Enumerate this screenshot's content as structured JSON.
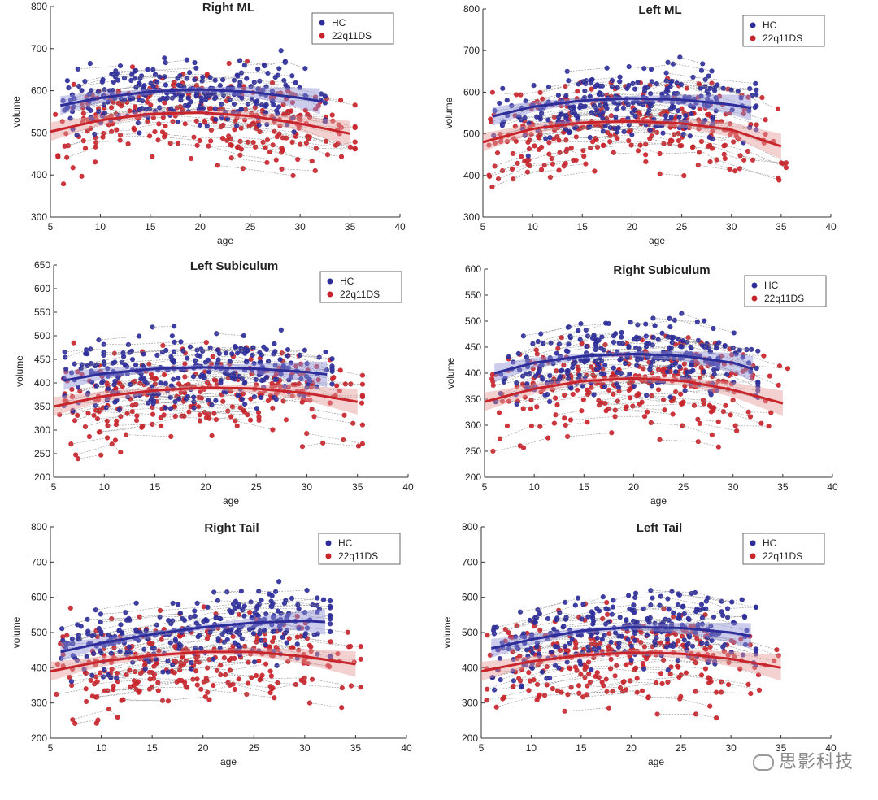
{
  "colors": {
    "hc": "#2e2e9a",
    "ds": "#c8242b",
    "hc_band": "#8f8fd6",
    "ds_band": "#e69a9a",
    "link": "#888888"
  },
  "watermark": "思影科技",
  "chart_data": [
    {
      "type": "scatter",
      "title": "Right ML",
      "xlabel": "age",
      "ylabel": "volume",
      "xlim": [
        5,
        40
      ],
      "ylim": [
        300,
        800
      ],
      "xticks": [
        "5",
        "10",
        "15",
        "20",
        "25",
        "30",
        "35",
        "40"
      ],
      "yticks": [
        "300",
        "400",
        "500",
        "600",
        "700",
        "800"
      ],
      "legend": [
        "HC",
        "22q11DS"
      ],
      "legend_position": "top-right",
      "series": [
        {
          "name": "HC",
          "fit": [
            [
              6,
              565
            ],
            [
              10,
              583
            ],
            [
              15,
              598
            ],
            [
              20,
              603
            ],
            [
              25,
              597
            ],
            [
              30,
              583
            ],
            [
              32,
              575
            ]
          ]
        },
        {
          "name": "22q11DS",
          "fit": [
            [
              5,
              503
            ],
            [
              10,
              530
            ],
            [
              15,
              545
            ],
            [
              20,
              548
            ],
            [
              25,
              540
            ],
            [
              30,
              522
            ],
            [
              35,
              498
            ]
          ]
        }
      ]
    },
    {
      "type": "scatter",
      "title": "Left ML",
      "xlabel": "age",
      "ylabel": "volume",
      "xlim": [
        5,
        40
      ],
      "ylim": [
        300,
        800
      ],
      "xticks": [
        "5",
        "10",
        "15",
        "20",
        "25",
        "30",
        "35",
        "40"
      ],
      "yticks": [
        "300",
        "400",
        "500",
        "600",
        "700",
        "800"
      ],
      "legend": [
        "HC",
        "22q11DS"
      ],
      "legend_position": "top-right",
      "series": [
        {
          "name": "HC",
          "fit": [
            [
              6,
              542
            ],
            [
              10,
              565
            ],
            [
              15,
              580
            ],
            [
              20,
              585
            ],
            [
              25,
              582
            ],
            [
              30,
              570
            ],
            [
              32,
              562
            ]
          ]
        },
        {
          "name": "22q11DS",
          "fit": [
            [
              5,
              480
            ],
            [
              10,
              512
            ],
            [
              15,
              527
            ],
            [
              20,
              530
            ],
            [
              25,
              525
            ],
            [
              30,
              510
            ],
            [
              35,
              470
            ]
          ]
        }
      ]
    },
    {
      "type": "scatter",
      "title": "Left Subiculum",
      "xlabel": "age",
      "ylabel": "volume",
      "xlim": [
        5,
        40
      ],
      "ylim": [
        200,
        650
      ],
      "xticks": [
        "5",
        "10",
        "15",
        "20",
        "25",
        "30",
        "35",
        "40"
      ],
      "yticks": [
        "200",
        "250",
        "300",
        "350",
        "400",
        "450",
        "500",
        "550",
        "600",
        "650"
      ],
      "legend": [
        "HC",
        "22q11DS"
      ],
      "legend_position": "top-right",
      "series": [
        {
          "name": "HC",
          "fit": [
            [
              6,
              405
            ],
            [
              10,
              420
            ],
            [
              15,
              430
            ],
            [
              20,
              433
            ],
            [
              25,
              430
            ],
            [
              30,
              423
            ],
            [
              32,
              418
            ]
          ]
        },
        {
          "name": "22q11DS",
          "fit": [
            [
              5,
              350
            ],
            [
              10,
              372
            ],
            [
              15,
              384
            ],
            [
              20,
              390
            ],
            [
              25,
              388
            ],
            [
              30,
              378
            ],
            [
              35,
              360
            ]
          ]
        }
      ]
    },
    {
      "type": "scatter",
      "title": "Right Subiculum",
      "xlabel": "age",
      "ylabel": "volume",
      "xlim": [
        5,
        40
      ],
      "ylim": [
        200,
        600
      ],
      "xticks": [
        "5",
        "10",
        "15",
        "20",
        "25",
        "30",
        "35",
        "40"
      ],
      "yticks": [
        "200",
        "250",
        "300",
        "350",
        "400",
        "450",
        "500",
        "550",
        "600"
      ],
      "legend": [
        "HC",
        "22q11DS"
      ],
      "legend_position": "top-right",
      "series": [
        {
          "name": "HC",
          "fit": [
            [
              6,
              400
            ],
            [
              10,
              420
            ],
            [
              15,
              433
            ],
            [
              20,
              437
            ],
            [
              25,
              433
            ],
            [
              30,
              420
            ],
            [
              32,
              408
            ]
          ]
        },
        {
          "name": "22q11DS",
          "fit": [
            [
              5,
              345
            ],
            [
              10,
              370
            ],
            [
              15,
              385
            ],
            [
              20,
              390
            ],
            [
              25,
              385
            ],
            [
              30,
              368
            ],
            [
              35,
              342
            ]
          ]
        }
      ]
    },
    {
      "type": "scatter",
      "title": "Right Tail",
      "xlabel": "age",
      "ylabel": "volume",
      "xlim": [
        5,
        40
      ],
      "ylim": [
        200,
        800
      ],
      "xticks": [
        "5",
        "10",
        "15",
        "20",
        "25",
        "30",
        "35",
        "40"
      ],
      "yticks": [
        "200",
        "300",
        "400",
        "500",
        "600",
        "700",
        "800"
      ],
      "legend": [
        "HC",
        "22q11DS"
      ],
      "legend_position": "top-right",
      "series": [
        {
          "name": "HC",
          "fit": [
            [
              6,
              445
            ],
            [
              10,
              470
            ],
            [
              15,
              495
            ],
            [
              20,
              515
            ],
            [
              25,
              528
            ],
            [
              30,
              533
            ],
            [
              32,
              530
            ]
          ]
        },
        {
          "name": "22q11DS",
          "fit": [
            [
              5,
              390
            ],
            [
              10,
              418
            ],
            [
              15,
              435
            ],
            [
              20,
              445
            ],
            [
              25,
              445
            ],
            [
              30,
              432
            ],
            [
              35,
              410
            ]
          ]
        }
      ]
    },
    {
      "type": "scatter",
      "title": "Left Tail",
      "xlabel": "age",
      "ylabel": "volume",
      "xlim": [
        5,
        40
      ],
      "ylim": [
        200,
        800
      ],
      "xticks": [
        "5",
        "10",
        "15",
        "20",
        "25",
        "30",
        "35",
        "40"
      ],
      "yticks": [
        "200",
        "300",
        "400",
        "500",
        "600",
        "700",
        "800"
      ],
      "legend": [
        "HC",
        "22q11DS"
      ],
      "legend_position": "top-right",
      "series": [
        {
          "name": "HC",
          "fit": [
            [
              6,
              455
            ],
            [
              10,
              480
            ],
            [
              15,
              505
            ],
            [
              20,
              515
            ],
            [
              25,
              513
            ],
            [
              30,
              500
            ],
            [
              32,
              490
            ]
          ]
        },
        {
          "name": "22q11DS",
          "fit": [
            [
              5,
              390
            ],
            [
              10,
              418
            ],
            [
              15,
              435
            ],
            [
              20,
              443
            ],
            [
              25,
              440
            ],
            [
              30,
              425
            ],
            [
              35,
              400
            ]
          ]
        }
      ]
    }
  ]
}
